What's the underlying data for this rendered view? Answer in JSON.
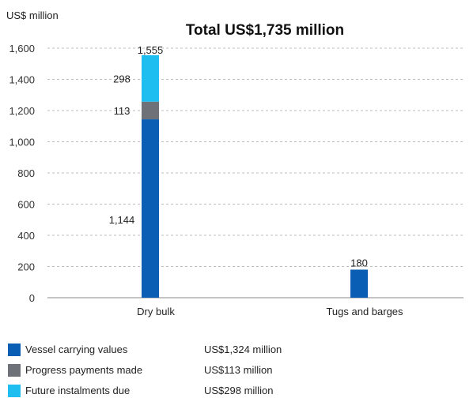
{
  "chart_data": {
    "type": "bar",
    "stacked": true,
    "unit_label": "US$ million",
    "title": "Total US$1,735 million",
    "categories": [
      "Dry bulk",
      "Tugs and barges"
    ],
    "y_ticks": [
      "0",
      "200",
      "400",
      "600",
      "800",
      "1,000",
      "1,200",
      "1,400",
      "1,600"
    ],
    "ylim": [
      0,
      1600
    ],
    "grid": true,
    "series": [
      {
        "name": "Vessel carrying values",
        "values": [
          1144,
          180
        ],
        "labels": [
          "1,144",
          "180"
        ],
        "color": "#0a5fb4"
      },
      {
        "name": "Progress payments made",
        "values": [
          113,
          0
        ],
        "labels": [
          "113",
          ""
        ],
        "color": "#6e7278"
      },
      {
        "name": "Future instalments due",
        "values": [
          298,
          0
        ],
        "labels": [
          "298",
          ""
        ],
        "color": "#1ebef0"
      }
    ],
    "totals": [
      1555,
      180
    ],
    "total_labels": [
      "1,555",
      "180"
    ]
  },
  "legend": {
    "placement": "bottom-left",
    "items": [
      {
        "label": "Vessel carrying values",
        "value": "US$1,324 million",
        "color": "#0a5fb4"
      },
      {
        "label": "Progress payments made",
        "value": "US$113 million",
        "color": "#6e7278"
      },
      {
        "label": "Future instalments due",
        "value": "US$298 million",
        "color": "#1ebef0"
      }
    ]
  }
}
